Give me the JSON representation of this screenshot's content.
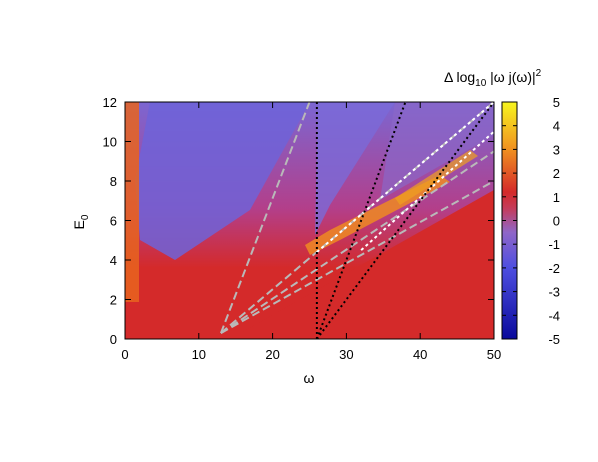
{
  "chart_data": {
    "type": "heatmap",
    "title": "",
    "xlabel": "ω",
    "ylabel": "E",
    "ylabel_sub": "0",
    "xlim": [
      0,
      50
    ],
    "ylim": [
      0,
      12
    ],
    "x_ticks": [
      "0",
      "10",
      "20",
      "30",
      "40",
      "50"
    ],
    "y_ticks": [
      "0",
      "2",
      "4",
      "6",
      "8",
      "10",
      "12"
    ],
    "colorbar": {
      "title_parts": {
        "prefix": "Δ log",
        "sub": "10",
        "mid": " |ω j(ω)|",
        "sup": "2"
      },
      "range": [
        -5,
        5
      ],
      "ticks": [
        "5",
        "4",
        "3",
        "2",
        "1",
        "0",
        "-1",
        "-2",
        "-3",
        "-4",
        "-5"
      ],
      "colors": [
        "#0a0a9c",
        "#6a5bd6",
        "#8f66c8",
        "#d42a2a",
        "#f09020",
        "#f7f61f"
      ]
    },
    "grey_dashed_lines": [
      {
        "from": [
          13,
          0.3
        ],
        "to": [
          25,
          12
        ]
      },
      {
        "from": [
          13,
          0.3
        ],
        "to": [
          50,
          12
        ]
      },
      {
        "from": [
          13,
          0.3
        ],
        "to": [
          50,
          9.5
        ]
      },
      {
        "from": [
          13,
          0.3
        ],
        "to": [
          50,
          8
        ]
      }
    ],
    "black_dotted_lines": [
      {
        "from": [
          26,
          0
        ],
        "to": [
          26,
          12
        ]
      },
      {
        "from": [
          26,
          0
        ],
        "to": [
          38,
          12
        ]
      },
      {
        "from": [
          26,
          0
        ],
        "to": [
          50,
          12
        ]
      }
    ],
    "white_dashed_lines": [
      {
        "from": [
          26,
          4.4
        ],
        "to": [
          50,
          12
        ]
      },
      {
        "from": [
          32,
          4.5
        ],
        "to": [
          50,
          10.5
        ]
      }
    ]
  }
}
